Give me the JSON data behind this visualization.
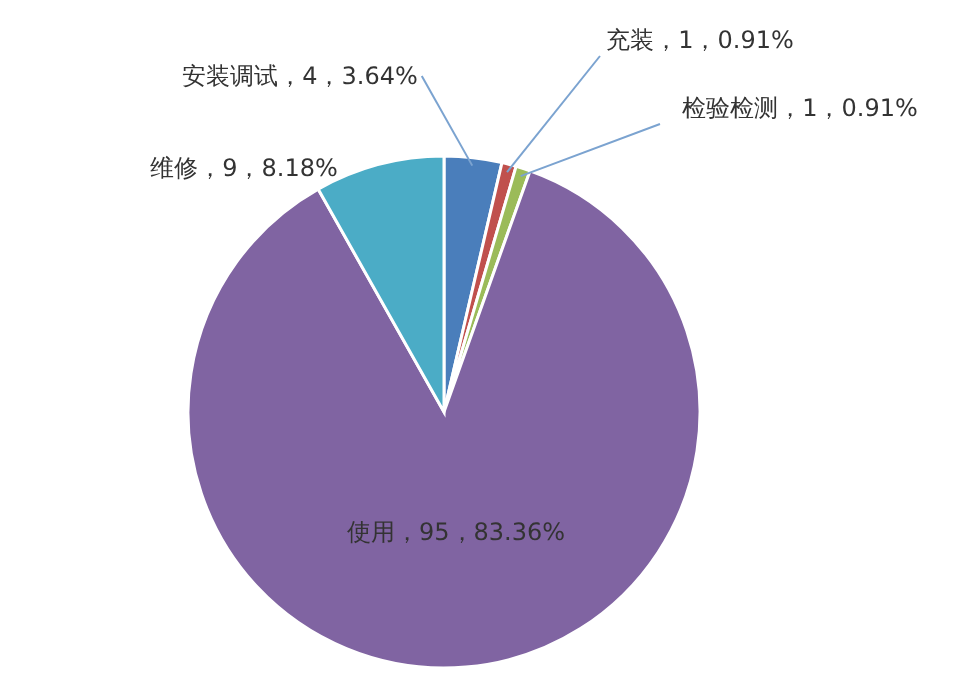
{
  "chart_data": {
    "type": "pie",
    "categories": [
      "安装调试",
      "充装",
      "检验检测",
      "使用",
      "维修"
    ],
    "values": [
      4,
      1,
      1,
      95,
      9
    ],
    "colors": [
      "#4a7ebb",
      "#c0504d",
      "#9bbb59",
      "#8064a2",
      "#4bacc6"
    ],
    "value_labels": [
      "4，3.64%",
      "1，0.91%",
      "1，0.91%",
      "95，83.36%",
      "9，8.18%"
    ]
  }
}
